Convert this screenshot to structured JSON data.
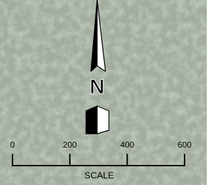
{
  "north_label": "N",
  "scale": {
    "ticks": [
      0,
      200,
      400,
      600
    ],
    "label": "SCALE"
  }
}
